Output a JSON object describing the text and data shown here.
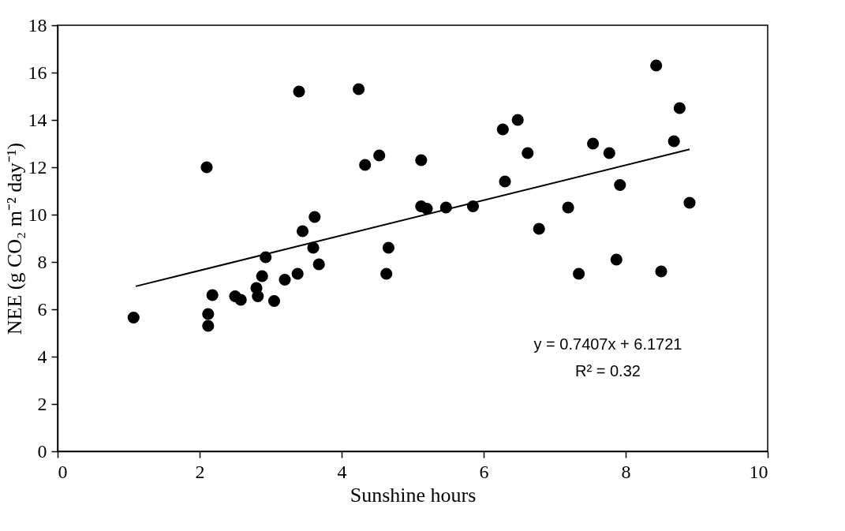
{
  "chart_data": {
    "type": "scatter",
    "xlabel": "Sunshine hours",
    "ylabel": "NEE (g CO₂ m⁻² day⁻¹)",
    "xlim": [
      0,
      10
    ],
    "xticks": [
      0,
      2,
      4,
      6,
      8,
      10
    ],
    "ylim": [
      0,
      18
    ],
    "yticks": [
      0,
      2,
      4,
      6,
      8,
      10,
      12,
      14,
      16,
      18
    ],
    "grid": false,
    "annotations": [
      "y = 0.7407x + 6.1721",
      "R² = 0.32"
    ],
    "series": [
      {
        "color": "#000000",
        "marker": "circle",
        "x": [
          1.07,
          2.1,
          2.12,
          2.12,
          2.18,
          2.5,
          2.58,
          2.8,
          2.82,
          2.88,
          2.93,
          3.05,
          3.2,
          3.38,
          3.4,
          3.45,
          3.6,
          3.62,
          3.68,
          4.24,
          4.33,
          4.53,
          4.63,
          4.66,
          5.12,
          5.12,
          5.2,
          5.47,
          5.85,
          6.27,
          6.3,
          6.48,
          6.62,
          6.78,
          7.19,
          7.34,
          7.54,
          7.77,
          7.87,
          7.92,
          8.43,
          8.5,
          8.68,
          8.76,
          8.9
        ],
        "values": [
          5.65,
          12.0,
          5.8,
          5.3,
          6.6,
          6.55,
          6.4,
          6.9,
          6.55,
          7.4,
          8.2,
          6.35,
          7.25,
          7.5,
          15.2,
          9.3,
          8.6,
          9.9,
          7.9,
          15.3,
          12.1,
          12.5,
          7.5,
          8.6,
          12.3,
          10.35,
          10.25,
          10.3,
          10.35,
          13.6,
          11.4,
          14.0,
          12.6,
          9.4,
          10.3,
          7.5,
          13.0,
          12.6,
          8.1,
          11.25,
          16.3,
          7.6,
          13.1,
          14.5,
          10.5
        ]
      },
      {
        "type": "line",
        "color": "#000000",
        "line_style": "solid",
        "x": [
          1.1,
          8.9
        ],
        "values": [
          6.97,
          12.76
        ]
      }
    ]
  }
}
